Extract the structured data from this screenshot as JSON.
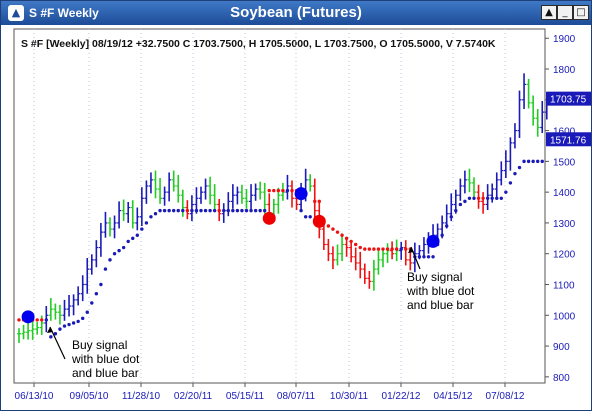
{
  "window": {
    "icon": "app-triangle-icon",
    "label": "S #F Weekly",
    "title": "Soybean (Futures)",
    "controls": [
      {
        "name": "scroll-up-button",
        "glyph": "▲"
      },
      {
        "name": "minimize-button",
        "glyph": "_"
      },
      {
        "name": "maximize-button",
        "glyph": "□"
      },
      {
        "name": "close-button",
        "glyph": "X"
      }
    ]
  },
  "chart_data": {
    "type": "bar",
    "info_line": "S #F [Weekly] 08/19/12  +32.7500 C 1703.7500, H 1705.5000, L 1703.7500, O 1705.5000, V 7.5740K",
    "yticks": [
      800,
      900,
      1000,
      1100,
      1200,
      1300,
      1400,
      1500,
      1600,
      1700,
      1800,
      1900
    ],
    "ylim": [
      780,
      1930
    ],
    "xticks": [
      "06/13/10",
      "09/05/10",
      "11/28/10",
      "02/20/11",
      "05/15/11",
      "08/07/11",
      "10/30/11",
      "01/22/12",
      "04/15/12",
      "07/08/12"
    ],
    "price_tags": [
      {
        "value": "1703.75",
        "y": 1703.75
      },
      {
        "value": "1571.76",
        "y": 1571.76
      }
    ],
    "annotations": [
      {
        "lines": [
          "Buy signal",
          "with blue dot",
          "and blue bar"
        ],
        "week": 2
      },
      {
        "lines": [
          "Buy signal",
          "with blue dot",
          "and blue bar"
        ],
        "week": 91
      }
    ],
    "signals": [
      {
        "week": 2,
        "price": 995,
        "color": "#0000ee"
      },
      {
        "week": 55,
        "price": 1315,
        "color": "#ee0000"
      },
      {
        "week": 62,
        "price": 1395,
        "color": "#0000ee"
      },
      {
        "week": 66,
        "price": 1305,
        "color": "#ee0000"
      },
      {
        "week": 91,
        "price": 1240,
        "color": "#0000ee"
      }
    ],
    "series": [
      {
        "name": "close",
        "values": [
          940,
          945,
          950,
          955,
          960,
          975,
          1000,
          1020,
          1010,
          1000,
          1020,
          1030,
          1050,
          1070,
          1100,
          1150,
          1180,
          1220,
          1270,
          1300,
          1280,
          1300,
          1340,
          1330,
          1350,
          1300,
          1320,
          1380,
          1420,
          1440,
          1410,
          1380,
          1400,
          1440,
          1420,
          1390,
          1350,
          1330,
          1360,
          1380,
          1400,
          1420,
          1390,
          1360,
          1330,
          1340,
          1370,
          1390,
          1400,
          1380,
          1370,
          1390,
          1410,
          1400,
          1360,
          1330,
          1360,
          1390,
          1400,
          1420,
          1380,
          1360,
          1400,
          1440,
          1420,
          1340,
          1280,
          1230,
          1200,
          1180,
          1200,
          1230,
          1220,
          1190,
          1170,
          1150,
          1120,
          1110,
          1150,
          1180,
          1200,
          1210,
          1200,
          1210,
          1220,
          1180,
          1170,
          1200,
          1210,
          1230,
          1240,
          1260,
          1280,
          1300,
          1330,
          1360,
          1390,
          1420,
          1440,
          1430,
          1400,
          1370,
          1360,
          1390,
          1410,
          1440,
          1470,
          1500,
          1560,
          1600,
          1700,
          1750,
          1690,
          1640,
          1610,
          1660,
          1700
        ]
      },
      {
        "name": "trailing-stop",
        "values": [
          985,
          985,
          985,
          985,
          985,
          985,
          985,
          930,
          940,
          955,
          965,
          970,
          975,
          980,
          990,
          1010,
          1040,
          1070,
          1100,
          1150,
          1180,
          1200,
          1210,
          1220,
          1240,
          1250,
          1260,
          1280,
          1300,
          1320,
          1330,
          1340,
          1340,
          1340,
          1340,
          1340,
          1340,
          1340,
          1340,
          1340,
          1340,
          1340,
          1340,
          1340,
          1340,
          1340,
          1340,
          1340,
          1340,
          1340,
          1340,
          1340,
          1340,
          1340,
          1340,
          1405,
          1405,
          1405,
          1405,
          1405,
          1405,
          1405,
          1340,
          1320,
          1320,
          1370,
          1370,
          1300,
          1290,
          1280,
          1270,
          1260,
          1250,
          1240,
          1230,
          1220,
          1215,
          1215,
          1215,
          1215,
          1215,
          1215,
          1215,
          1215,
          1215,
          1215,
          1215,
          1190,
          1190,
          1190,
          1190,
          1190,
          1230,
          1260,
          1290,
          1320,
          1340,
          1360,
          1370,
          1380,
          1380,
          1380,
          1380,
          1380,
          1380,
          1380,
          1380,
          1400,
          1430,
          1460,
          1480,
          1500,
          1500,
          1500,
          1500,
          1500
        ]
      }
    ]
  }
}
